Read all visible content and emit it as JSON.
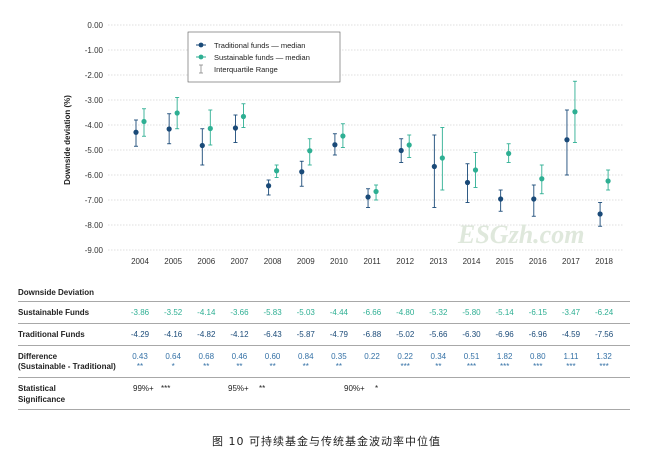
{
  "chart_data": {
    "type": "scatter",
    "ylabel": "Downside deviation (%)",
    "ylim": [
      -9.0,
      0.0
    ],
    "y_ticks": [
      "0.00",
      "-1.00",
      "-2.00",
      "-3.00",
      "-4.00",
      "-5.00",
      "-6.00",
      "-7.00",
      "-8.00",
      "-9.00"
    ],
    "categories": [
      "2004",
      "2005",
      "2006",
      "2007",
      "2008",
      "2009",
      "2010",
      "2011",
      "2012",
      "2013",
      "2014",
      "2015",
      "2016",
      "2017",
      "2018"
    ],
    "series": [
      {
        "name": "Traditional funds — median",
        "color": "#1a4a78",
        "values": [
          -4.29,
          -4.16,
          -4.82,
          -4.12,
          -6.43,
          -5.87,
          -4.79,
          -6.88,
          -5.02,
          -5.66,
          -6.3,
          -6.96,
          -6.96,
          -4.59,
          -7.56
        ],
        "iqr_low": [
          -4.85,
          -4.75,
          -5.6,
          -4.7,
          -6.8,
          -6.45,
          -5.2,
          -7.3,
          -5.5,
          -7.3,
          -7.1,
          -7.45,
          -7.65,
          -6.0,
          -8.05
        ],
        "iqr_high": [
          -3.8,
          -3.55,
          -4.15,
          -3.6,
          -6.2,
          -5.45,
          -4.35,
          -6.55,
          -4.55,
          -4.4,
          -5.55,
          -6.6,
          -6.4,
          -3.4,
          -7.1
        ]
      },
      {
        "name": "Sustainable funds — median",
        "color": "#2eaf93",
        "values": [
          -3.86,
          -3.52,
          -4.14,
          -3.66,
          -5.83,
          -5.03,
          -4.44,
          -6.66,
          -4.8,
          -5.32,
          -5.8,
          -5.14,
          -6.15,
          -3.47,
          -6.24
        ],
        "iqr_low": [
          -4.45,
          -4.15,
          -4.8,
          -4.1,
          -6.1,
          -5.6,
          -4.9,
          -7.0,
          -5.3,
          -6.6,
          -6.5,
          -5.5,
          -6.75,
          -4.7,
          -6.6
        ],
        "iqr_high": [
          -3.35,
          -2.9,
          -3.4,
          -3.15,
          -5.6,
          -4.55,
          -3.95,
          -6.4,
          -4.4,
          -4.1,
          -5.1,
          -4.75,
          -5.6,
          -2.25,
          -5.8
        ]
      }
    ],
    "legend": {
      "traditional": "Traditional funds — median",
      "sustainable": "Sustainable funds — median",
      "iqr": "Interquartile Range",
      "placement": "top-left"
    }
  },
  "table": {
    "title": "Downside Deviation",
    "years": [
      "2004",
      "2005",
      "2006",
      "2007",
      "2008",
      "2009",
      "2010",
      "2011",
      "2012",
      "2013",
      "2014",
      "2015",
      "2016",
      "2017",
      "2018"
    ],
    "sustainable_label": "Sustainable Funds",
    "sustainable": [
      "-3.86",
      "-3.52",
      "-4.14",
      "-3.66",
      "-5.83",
      "-5.03",
      "-4.44",
      "-6.66",
      "-4.80",
      "-5.32",
      "-5.80",
      "-5.14",
      "-6.15",
      "-3.47",
      "-6.24"
    ],
    "traditional_label": "Traditional Funds",
    "traditional": [
      "-4.29",
      "-4.16",
      "-4.82",
      "-4.12",
      "-6.43",
      "-5.87",
      "-4.79",
      "-6.88",
      "-5.02",
      "-5.66",
      "-6.30",
      "-6.96",
      "-6.96",
      "-4.59",
      "-7.56"
    ],
    "difference_label_1": "Difference",
    "difference_label_2": "(Sustainable - Traditional)",
    "difference": [
      "0.43",
      "0.64",
      "0.68",
      "0.46",
      "0.60",
      "0.84",
      "0.35",
      "0.22",
      "0.22",
      "0.34",
      "0.51",
      "1.82",
      "0.80",
      "1.11",
      "1.32"
    ],
    "difference_stars": [
      "**",
      "*",
      "**",
      "**",
      "**",
      "**",
      "**",
      "",
      "***",
      "**",
      "***",
      "***",
      "***",
      "***",
      "***"
    ],
    "significance_label_1": "Statistical",
    "significance_label_2": "Significance",
    "significance": [
      {
        "label": "99%+",
        "stars": "***"
      },
      {
        "label": "95%+",
        "stars": "**"
      },
      {
        "label": "90%+",
        "stars": "*"
      }
    ]
  },
  "caption": "图 10 可持续基金与传统基金波动率中位值",
  "watermark": "ESGzh.com"
}
